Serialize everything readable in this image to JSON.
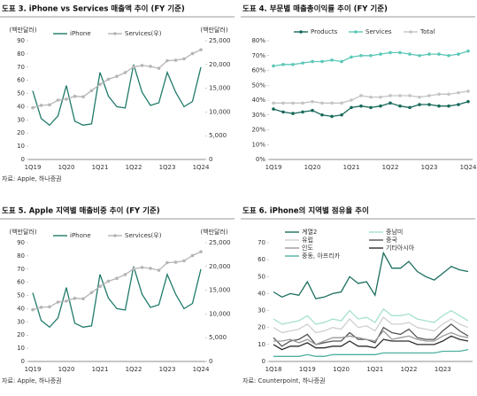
{
  "chart_data": [
    {
      "type": "line",
      "title": "도표 3. iPhone vs Services 매출액 추이 (FY 기준)",
      "source": "자료: Apple, 하나증권",
      "y_label": "(백만달러)",
      "y2_label": "(백만달러)",
      "legend": "top",
      "categories": [
        "1Q19",
        null,
        null,
        null,
        "1Q20",
        null,
        null,
        null,
        "1Q21",
        null,
        null,
        null,
        "1Q22",
        null,
        null,
        null,
        "1Q23",
        null,
        null,
        null,
        "1Q24"
      ],
      "ylim": [
        0,
        90
      ],
      "yticks": [
        0,
        10,
        20,
        30,
        40,
        50,
        60,
        70,
        80,
        90
      ],
      "y2lim": [
        0,
        25000
      ],
      "y2ticks": [
        0,
        {
          "value": 5000,
          "label": "5,000"
        },
        {
          "value": 10000,
          "label": "10,000"
        },
        {
          "value": 15000,
          "label": "15,000"
        },
        {
          "value": 20000,
          "label": "20,000"
        },
        {
          "value": 25000,
          "label": "25,000"
        }
      ],
      "series": [
        {
          "name": "iPhone",
          "color": "#1f7a6a",
          "values": [
            52,
            31,
            26,
            33,
            56,
            29,
            26,
            27,
            66,
            48,
            40,
            39,
            72,
            51,
            41,
            43,
            66,
            51,
            40,
            44,
            70
          ]
        },
        {
          "name": "Services(우)",
          "color": "#b5b5b5",
          "axis": "y2",
          "marker": "circle",
          "values": [
            10900,
            11400,
            11500,
            12500,
            12700,
            13300,
            13200,
            14500,
            15800,
            16900,
            17500,
            18300,
            19500,
            19800,
            19600,
            19200,
            20800,
            20900,
            21200,
            22300,
            23100
          ]
        }
      ]
    },
    {
      "type": "line",
      "title": "도표 4. 부문별 매출총이익률 추이 (FY 기준)",
      "source": "",
      "legend": "top",
      "categories": [
        "1Q19",
        null,
        null,
        null,
        "1Q20",
        null,
        null,
        null,
        "1Q21",
        null,
        null,
        null,
        "1Q22",
        null,
        null,
        null,
        "1Q23",
        null,
        null,
        null,
        "1Q24"
      ],
      "ylim": [
        0,
        80
      ],
      "yticks": [
        {
          "value": 0,
          "label": "0%"
        },
        {
          "value": 10,
          "label": "10%"
        },
        {
          "value": 20,
          "label": "20%"
        },
        {
          "value": 30,
          "label": "30%"
        },
        {
          "value": 40,
          "label": "40%"
        },
        {
          "value": 50,
          "label": "50%"
        },
        {
          "value": 60,
          "label": "60%"
        },
        {
          "value": 70,
          "label": "70%"
        },
        {
          "value": 80,
          "label": "80%"
        }
      ],
      "series": [
        {
          "name": "Products",
          "color": "#17695a",
          "marker": "circle",
          "values": [
            34,
            32,
            31,
            32,
            33,
            30,
            29,
            30,
            35,
            36,
            35,
            36,
            38,
            36,
            35,
            37,
            37,
            36,
            36,
            37,
            39
          ]
        },
        {
          "name": "Services",
          "color": "#5cc8b8",
          "marker": "circle",
          "values": [
            63,
            64,
            64,
            65,
            66,
            66,
            67,
            66,
            69,
            70,
            70,
            71,
            72,
            72,
            71,
            70,
            71,
            71,
            70,
            71,
            73
          ]
        },
        {
          "name": "Total",
          "color": "#c4c4c4",
          "marker": "circle",
          "values": [
            38,
            38,
            38,
            38,
            39,
            38,
            38,
            38,
            40,
            43,
            42,
            42,
            43,
            43,
            43,
            42,
            43,
            44,
            44,
            45,
            46
          ]
        }
      ]
    },
    {
      "type": "line",
      "title": "도표 5. Apple 지역별 매출비중 추이 (FY 기준)",
      "source": "자료: Apple, 하나증권",
      "y_label": "(백만달러)",
      "y2_label": "(백만달러)",
      "legend": "top",
      "categories": [
        "1Q19",
        null,
        null,
        null,
        "1Q20",
        null,
        null,
        null,
        "1Q21",
        null,
        null,
        null,
        "1Q22",
        null,
        null,
        null,
        "1Q23",
        null,
        null,
        null,
        "1Q24"
      ],
      "ylim": [
        0,
        90
      ],
      "yticks": [
        0,
        10,
        20,
        30,
        40,
        50,
        60,
        70,
        80,
        90
      ],
      "y2lim": [
        0,
        25000
      ],
      "y2ticks": [
        0,
        {
          "value": 5000,
          "label": "5,000"
        },
        {
          "value": 10000,
          "label": "10,000"
        },
        {
          "value": 15000,
          "label": "15,000"
        },
        {
          "value": 20000,
          "label": "20,000"
        },
        {
          "value": 25000,
          "label": "25,000"
        }
      ],
      "series": [
        {
          "name": "iPhone",
          "color": "#1f7a6a",
          "values": [
            52,
            31,
            26,
            33,
            56,
            29,
            26,
            27,
            66,
            48,
            40,
            39,
            72,
            51,
            41,
            43,
            66,
            51,
            40,
            44,
            70
          ]
        },
        {
          "name": "Services(우)",
          "color": "#b5b5b5",
          "axis": "y2",
          "marker": "circle",
          "values": [
            10900,
            11400,
            11500,
            12500,
            12700,
            13300,
            13200,
            14500,
            15800,
            16900,
            17500,
            18300,
            19500,
            19800,
            19600,
            19200,
            20800,
            20900,
            21200,
            22300,
            23100
          ]
        }
      ]
    },
    {
      "type": "line",
      "title": "도표 6. iPhone의 지역별 점유율 추이",
      "source": "자료: Counterpoint, 하나증권",
      "legend": "upper center",
      "categories": [
        "1Q18",
        null,
        null,
        null,
        "1Q19",
        null,
        null,
        null,
        "1Q20",
        null,
        null,
        null,
        "1Q21",
        null,
        null,
        null,
        "1Q22",
        null,
        null,
        null,
        "1Q23",
        null,
        null,
        null
      ],
      "ylim": [
        0,
        70
      ],
      "yticks": [
        0,
        10,
        20,
        30,
        40,
        50,
        60,
        70
      ],
      "series": [
        {
          "name": "계열2",
          "color": "#1a6e5e",
          "values": [
            41,
            38,
            40,
            39,
            47,
            37,
            38,
            40,
            41,
            50,
            46,
            47,
            39,
            64,
            55,
            55,
            59,
            53,
            50,
            48,
            52,
            56,
            54,
            53
          ]
        },
        {
          "name": "중남미",
          "color": "#a6e0d2",
          "values": [
            25,
            22,
            23,
            24,
            27,
            22,
            23,
            25,
            24,
            30,
            25,
            26,
            23,
            31,
            27,
            27,
            28,
            25,
            24,
            23,
            27,
            30,
            27,
            24
          ]
        },
        {
          "name": "유럽",
          "color": "#cfcfcf",
          "values": [
            20,
            17,
            18,
            19,
            22,
            17,
            18,
            20,
            19,
            25,
            20,
            21,
            18,
            26,
            22,
            22,
            23,
            20,
            19,
            18,
            22,
            25,
            22,
            20
          ]
        },
        {
          "name": "중국",
          "color": "#555555",
          "values": [
            14,
            9,
            12,
            13,
            16,
            10,
            11,
            12,
            12,
            17,
            13,
            13,
            11,
            20,
            17,
            16,
            19,
            14,
            13,
            13,
            18,
            22,
            18,
            15
          ]
        },
        {
          "name": "인도",
          "color": "#9a9a9a",
          "values": [
            12,
            12,
            13,
            11,
            13,
            10,
            12,
            14,
            14,
            15,
            14,
            13,
            12,
            18,
            13,
            14,
            15,
            13,
            12,
            12,
            15,
            17,
            15,
            14
          ]
        },
        {
          "name": "기타아시아",
          "color": "#2e2e2e",
          "values": [
            10,
            7,
            9,
            9,
            11,
            8,
            8,
            9,
            9,
            12,
            9,
            9,
            8,
            13,
            12,
            12,
            12,
            10,
            10,
            10,
            12,
            15,
            13,
            12
          ]
        },
        {
          "name": "중동, 아프리카",
          "color": "#4fb0a0",
          "values": [
            3,
            3,
            3,
            3,
            4,
            3,
            3,
            4,
            4,
            4,
            4,
            4,
            4,
            5,
            5,
            5,
            5,
            5,
            5,
            5,
            6,
            6,
            6,
            7
          ]
        }
      ]
    }
  ]
}
